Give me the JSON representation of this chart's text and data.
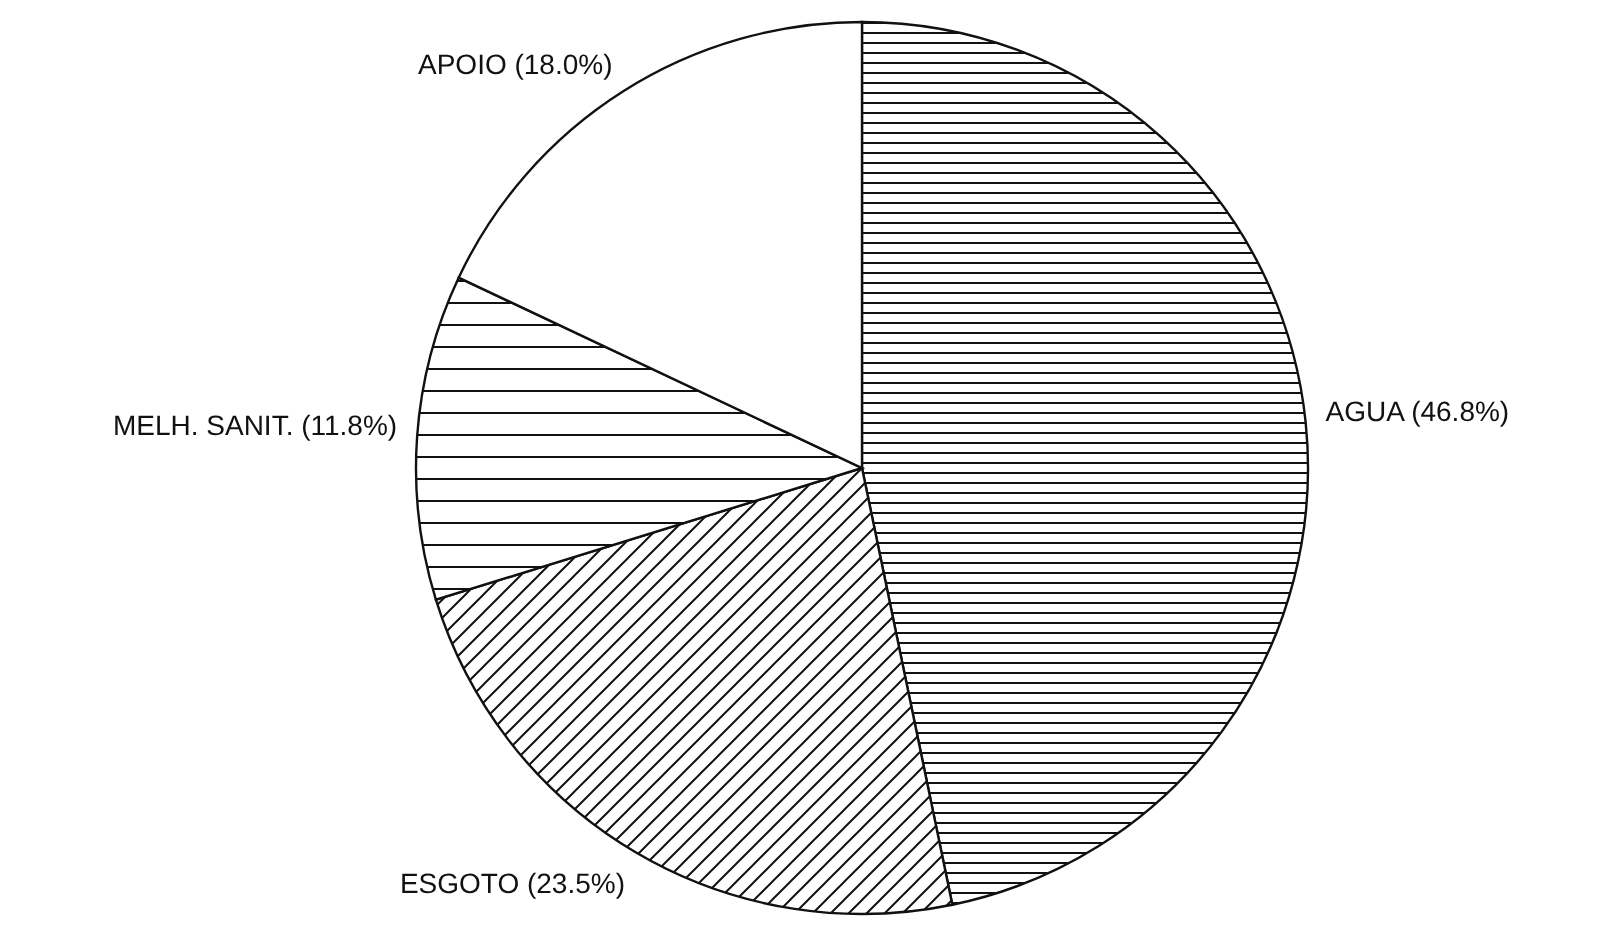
{
  "chart_data": {
    "type": "pie",
    "categories": [
      "AGUA",
      "ESGOTO",
      "MELH. SANIT.",
      "APOIO"
    ],
    "values": [
      46.8,
      23.5,
      11.8,
      18.0
    ],
    "colors": [
      "#ffffff",
      "#ffffff",
      "#ffffff",
      "#ffffff"
    ],
    "value_labels": [
      "(46.8%)",
      "(23.5%)",
      "(11.8%)",
      "(18.0%)"
    ]
  }
}
